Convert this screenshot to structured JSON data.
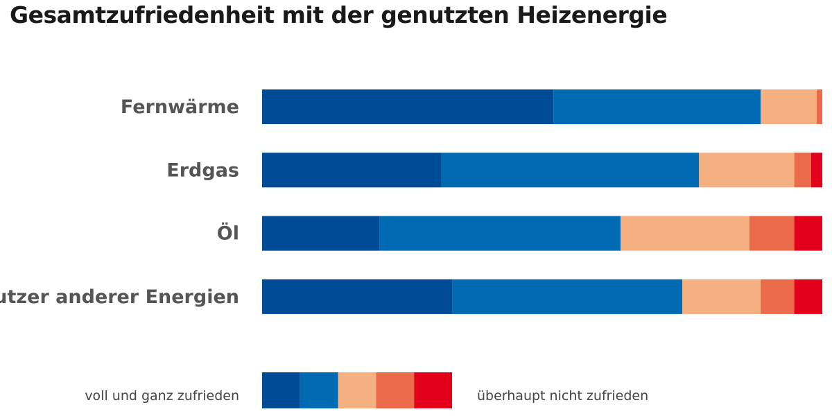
{
  "chart_data": {
    "type": "bar",
    "orientation": "horizontal",
    "stacked": true,
    "percent_stacked": true,
    "title": "Gesamtzufriedenheit mit der genutzten Heizenergie",
    "categories": [
      "Fernwärme",
      "Erdgas",
      "Öl",
      "Nutzer anderer Energien"
    ],
    "series": [
      {
        "values": [
          52,
          32,
          21,
          34
        ],
        "color": "#004b96"
      },
      {
        "values": [
          37,
          46,
          43,
          41
        ],
        "color": "#006ab3"
      },
      {
        "values": [
          10,
          17,
          23,
          14
        ],
        "color": "#f5b082"
      },
      {
        "values": [
          1,
          3,
          8,
          6
        ],
        "color": "#eb6a4a"
      },
      {
        "values": [
          0,
          2,
          5,
          5
        ],
        "color": "#e2001a"
      }
    ],
    "xlim": [
      0,
      100
    ],
    "grid": false,
    "legend": {
      "placement": "bottom",
      "low_label": "voll und ganz zufrieden",
      "high_label": "überhaupt nicht zufrieden",
      "colors": [
        "#004b96",
        "#006ab3",
        "#f5b082",
        "#eb6a4a",
        "#e2001a"
      ]
    }
  }
}
